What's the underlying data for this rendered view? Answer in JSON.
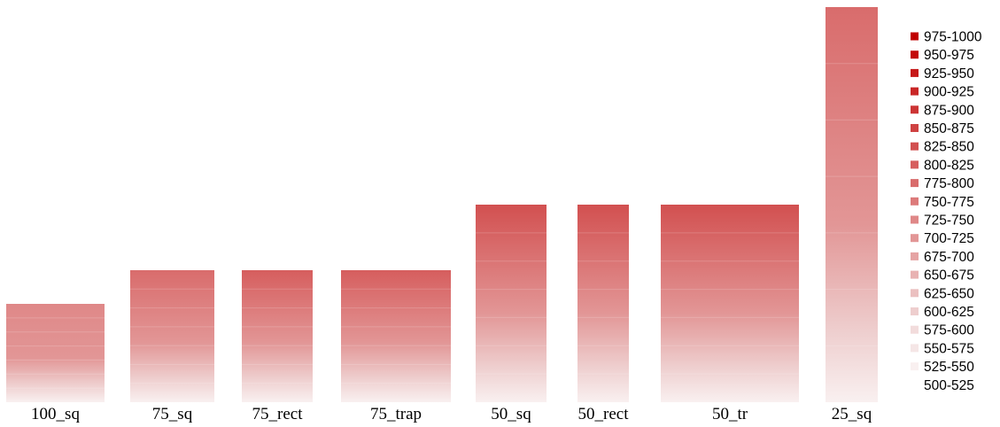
{
  "chart_data": {
    "type": "bar",
    "categories": [
      "100_sq",
      "75_sq",
      "75_rect",
      "75_trap",
      "50_sq",
      "50_rect",
      "50_tr",
      "25_sq"
    ],
    "bar_tops": [
      {
        "category": "100_sq",
        "top_band": "725-750"
      },
      {
        "category": "75_sq",
        "top_band": "775-800"
      },
      {
        "category": "75_rect",
        "top_band": "800-825"
      },
      {
        "category": "75_trap",
        "top_band": "800-825"
      },
      {
        "category": "50_sq",
        "top_band": "825-850"
      },
      {
        "category": "50_rect",
        "top_band": "825-850"
      },
      {
        "category": "50_tr",
        "top_band": "825-850"
      },
      {
        "category": "25_sq",
        "top_band": "775-800"
      }
    ],
    "legend": {
      "placement": "right",
      "entries": [
        {
          "label": "975-1000",
          "color": "#c00000"
        },
        {
          "label": "950-975",
          "color": "#c30a0a"
        },
        {
          "label": "925-950",
          "color": "#c61818"
        },
        {
          "label": "900-925",
          "color": "#c92626"
        },
        {
          "label": "875-900",
          "color": "#cc3434"
        },
        {
          "label": "850-875",
          "color": "#cf4242"
        },
        {
          "label": "825-850",
          "color": "#d25050"
        },
        {
          "label": "800-825",
          "color": "#d65e5e"
        },
        {
          "label": "775-800",
          "color": "#d96c6c"
        },
        {
          "label": "750-775",
          "color": "#dc7a7a"
        },
        {
          "label": "725-750",
          "color": "#df8888"
        },
        {
          "label": "700-725",
          "color": "#e29696"
        },
        {
          "label": "675-700",
          "color": "#e5a4a4"
        },
        {
          "label": "650-675",
          "color": "#e8b2b2"
        },
        {
          "label": "625-650",
          "color": "#ebc0c0"
        },
        {
          "label": "600-625",
          "color": "#eecece"
        },
        {
          "label": "575-600",
          "color": "#f2dcdc"
        },
        {
          "label": "550-575",
          "color": "#f5e6e6"
        },
        {
          "label": "525-550",
          "color": "#f9f0f0"
        },
        {
          "label": "500-525",
          "color": "#ffffff"
        }
      ]
    }
  }
}
